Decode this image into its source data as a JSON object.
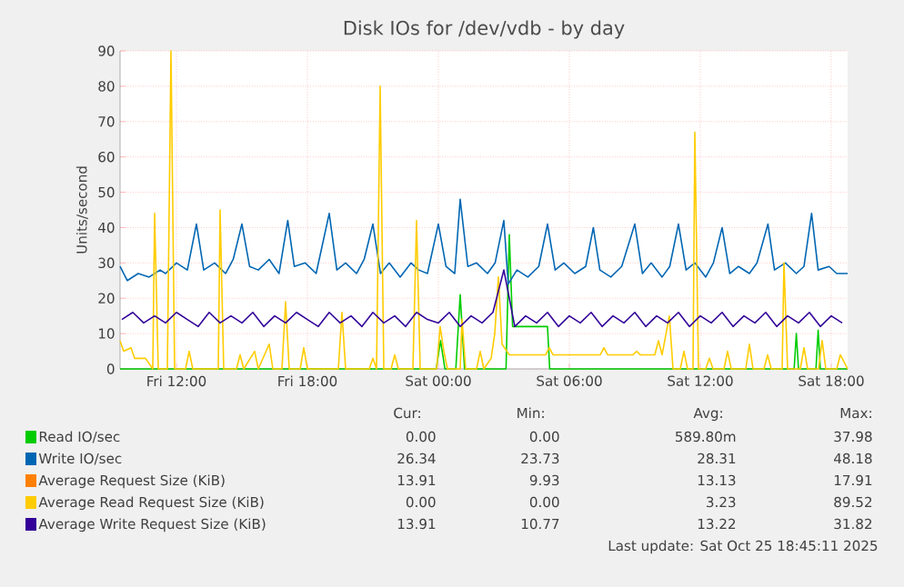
{
  "chart_data": {
    "type": "line",
    "title": "Disk IOs for /dev/vdb - by day",
    "ylabel": "Units/second",
    "xlim": [
      "2025-10-24T09:25",
      "2025-10-25T18:45"
    ],
    "ylim": [
      0,
      90
    ],
    "xticks": [
      {
        "value": "2025-10-24T12:00",
        "label": "Fri 12:00"
      },
      {
        "value": "2025-10-24T18:00",
        "label": "Fri 18:00"
      },
      {
        "value": "2025-10-25T00:00",
        "label": "Sat 00:00"
      },
      {
        "value": "2025-10-25T06:00",
        "label": "Sat 06:00"
      },
      {
        "value": "2025-10-25T12:00",
        "label": "Sat 12:00"
      },
      {
        "value": "2025-10-25T18:00",
        "label": "Sat 18:00"
      }
    ],
    "yticks": [
      0,
      10,
      20,
      30,
      40,
      50,
      60,
      70,
      80,
      90
    ],
    "grid": true,
    "legend": "bottom",
    "marker": "none",
    "line_style": "solid",
    "series": [
      {
        "name": "Read IO/sec",
        "color": "#00cc00",
        "x": [
          "2025-10-24T09:25",
          "2025-10-24T23:54",
          "2025-10-25T00:06",
          "2025-10-25T00:18",
          "2025-10-25T00:48",
          "2025-10-25T01:00",
          "2025-10-25T01:12",
          "2025-10-25T03:06",
          "2025-10-25T03:15",
          "2025-10-25T03:24",
          "2025-10-25T05:00",
          "2025-10-25T05:06",
          "2025-10-25T16:18",
          "2025-10-25T16:24",
          "2025-10-25T16:30",
          "2025-10-25T17:18",
          "2025-10-25T17:24",
          "2025-10-25T17:30",
          "2025-10-25T18:45"
        ],
        "values": [
          0,
          0,
          8,
          0,
          0,
          21,
          0,
          0,
          38,
          12,
          12,
          0,
          0,
          10,
          0,
          0,
          11,
          0,
          0
        ]
      },
      {
        "name": "Write IO/sec",
        "color": "#0066b3",
        "x": [
          "2025-10-24T09:25",
          "2025-10-24T09:45",
          "2025-10-24T10:15",
          "2025-10-24T10:45",
          "2025-10-24T11:15",
          "2025-10-24T11:30",
          "2025-10-24T12:00",
          "2025-10-24T12:30",
          "2025-10-24T12:55",
          "2025-10-24T13:15",
          "2025-10-24T13:45",
          "2025-10-24T14:15",
          "2025-10-24T14:36",
          "2025-10-24T15:00",
          "2025-10-24T15:21",
          "2025-10-24T15:45",
          "2025-10-24T16:15",
          "2025-10-24T16:42",
          "2025-10-24T17:06",
          "2025-10-24T17:24",
          "2025-10-24T17:54",
          "2025-10-24T18:24",
          "2025-10-24T19:00",
          "2025-10-24T19:21",
          "2025-10-24T19:45",
          "2025-10-24T20:15",
          "2025-10-24T20:36",
          "2025-10-24T21:00",
          "2025-10-24T21:21",
          "2025-10-24T21:45",
          "2025-10-24T22:15",
          "2025-10-24T22:45",
          "2025-10-24T23:06",
          "2025-10-24T23:30",
          "2025-10-25T00:00",
          "2025-10-25T00:21",
          "2025-10-25T00:45",
          "2025-10-25T01:00",
          "2025-10-25T01:21",
          "2025-10-25T01:45",
          "2025-10-25T02:15",
          "2025-10-25T02:36",
          "2025-10-25T03:00",
          "2025-10-25T03:12",
          "2025-10-25T03:36",
          "2025-10-25T04:06",
          "2025-10-25T04:36",
          "2025-10-25T05:00",
          "2025-10-25T05:21",
          "2025-10-25T05:45",
          "2025-10-25T06:15",
          "2025-10-25T06:45",
          "2025-10-25T07:06",
          "2025-10-25T07:24",
          "2025-10-25T07:54",
          "2025-10-25T08:24",
          "2025-10-25T09:00",
          "2025-10-25T09:21",
          "2025-10-25T09:45",
          "2025-10-25T10:15",
          "2025-10-25T10:36",
          "2025-10-25T11:00",
          "2025-10-25T11:21",
          "2025-10-25T11:45",
          "2025-10-25T12:15",
          "2025-10-25T12:36",
          "2025-10-25T13:00",
          "2025-10-25T13:21",
          "2025-10-25T13:45",
          "2025-10-25T14:15",
          "2025-10-25T14:36",
          "2025-10-25T15:06",
          "2025-10-25T15:24",
          "2025-10-25T15:54",
          "2025-10-25T16:24",
          "2025-10-25T16:45",
          "2025-10-25T17:06",
          "2025-10-25T17:24",
          "2025-10-25T17:54",
          "2025-10-25T18:15",
          "2025-10-25T18:45"
        ],
        "values": [
          29,
          25,
          27,
          26,
          28,
          27,
          30,
          28,
          41,
          28,
          30,
          27,
          31,
          41,
          29,
          28,
          31,
          27,
          42,
          29,
          30,
          27,
          44,
          28,
          30,
          27,
          31,
          41,
          27,
          30,
          26,
          30,
          28,
          27,
          41,
          29,
          27,
          48,
          29,
          30,
          27,
          30,
          42,
          24,
          28,
          26,
          29,
          41,
          28,
          30,
          27,
          29,
          40,
          28,
          26,
          29,
          41,
          27,
          30,
          26,
          29,
          41,
          28,
          30,
          26,
          30,
          40,
          27,
          29,
          27,
          30,
          41,
          28,
          30,
          27,
          29,
          44,
          28,
          29,
          27,
          27
        ]
      },
      {
        "name": "Average Request Size (KiB)",
        "color": "#ff8000"
      },
      {
        "name": "Average Read Request Size (KiB)",
        "color": "#ffcc00",
        "x": [
          "2025-10-24T09:25",
          "2025-10-24T09:35",
          "2025-10-24T09:55",
          "2025-10-24T10:05",
          "2025-10-24T10:35",
          "2025-10-24T10:55",
          "2025-10-24T11:00",
          "2025-10-24T11:10",
          "2025-10-24T11:35",
          "2025-10-24T11:45",
          "2025-10-24T11:55",
          "2025-10-24T12:25",
          "2025-10-24T12:35",
          "2025-10-24T12:45",
          "2025-10-24T13:55",
          "2025-10-24T14:00",
          "2025-10-24T14:10",
          "2025-10-24T14:45",
          "2025-10-24T14:55",
          "2025-10-24T15:05",
          "2025-10-24T15:35",
          "2025-10-24T15:45",
          "2025-10-24T16:15",
          "2025-10-24T16:25",
          "2025-10-24T16:50",
          "2025-10-24T17:00",
          "2025-10-24T17:10",
          "2025-10-24T17:40",
          "2025-10-24T17:50",
          "2025-10-24T18:00",
          "2025-10-24T19:25",
          "2025-10-24T19:35",
          "2025-10-24T19:45",
          "2025-10-24T20:50",
          "2025-10-24T21:00",
          "2025-10-24T21:10",
          "2025-10-24T21:20",
          "2025-10-24T21:30",
          "2025-10-24T21:50",
          "2025-10-24T22:00",
          "2025-10-24T22:10",
          "2025-10-24T22:50",
          "2025-10-24T23:00",
          "2025-10-24T23:10",
          "2025-10-24T23:55",
          "2025-10-25T00:05",
          "2025-10-25T00:15",
          "2025-10-25T00:25",
          "2025-10-25T01:00",
          "2025-10-25T01:05",
          "2025-10-25T01:15",
          "2025-10-25T01:45",
          "2025-10-25T01:55",
          "2025-10-25T02:05",
          "2025-10-25T02:25",
          "2025-10-25T02:35",
          "2025-10-25T02:45",
          "2025-10-25T02:55",
          "2025-10-25T03:15",
          "2025-10-25T04:55",
          "2025-10-25T05:05",
          "2025-10-25T05:15",
          "2025-10-25T07:25",
          "2025-10-25T07:35",
          "2025-10-25T07:45",
          "2025-10-25T08:55",
          "2025-10-25T09:05",
          "2025-10-25T09:15",
          "2025-10-25T09:55",
          "2025-10-25T10:05",
          "2025-10-25T10:15",
          "2025-10-25T10:35",
          "2025-10-25T10:45",
          "2025-10-25T11:05",
          "2025-10-25T11:15",
          "2025-10-25T11:25",
          "2025-10-25T11:40",
          "2025-10-25T11:45",
          "2025-10-25T11:55",
          "2025-10-25T12:15",
          "2025-10-25T12:25",
          "2025-10-25T12:35",
          "2025-10-25T13:05",
          "2025-10-25T13:15",
          "2025-10-25T13:25",
          "2025-10-25T14:05",
          "2025-10-25T14:15",
          "2025-10-25T14:25",
          "2025-10-25T14:55",
          "2025-10-25T15:05",
          "2025-10-25T15:15",
          "2025-10-25T15:45",
          "2025-10-25T15:50",
          "2025-10-25T16:00",
          "2025-10-25T16:35",
          "2025-10-25T16:45",
          "2025-10-25T16:55",
          "2025-10-25T17:25",
          "2025-10-25T17:35",
          "2025-10-25T17:45",
          "2025-10-25T18:15",
          "2025-10-25T18:25",
          "2025-10-25T18:45"
        ],
        "values": [
          8,
          5,
          6,
          3,
          3,
          0,
          44,
          0,
          0,
          90,
          0,
          0,
          5,
          0,
          0,
          45,
          0,
          0,
          4,
          0,
          5,
          0,
          7,
          0,
          0,
          19,
          0,
          0,
          6,
          0,
          0,
          16,
          0,
          0,
          3,
          0,
          80,
          0,
          0,
          4,
          0,
          0,
          42,
          0,
          0,
          12,
          5,
          0,
          0,
          14,
          0,
          0,
          5,
          0,
          3,
          10,
          26,
          7,
          4,
          4,
          6,
          4,
          4,
          6,
          4,
          4,
          5,
          4,
          4,
          8,
          4,
          15,
          0,
          0,
          5,
          0,
          0,
          67,
          0,
          0,
          3,
          0,
          0,
          5,
          0,
          0,
          7,
          0,
          0,
          4,
          0,
          0,
          30,
          0,
          0,
          6,
          0,
          0,
          8,
          0,
          0,
          4,
          0
        ]
      },
      {
        "name": "Average Write Request Size (KiB)",
        "color": "#330099",
        "x": [
          "2025-10-24T09:30",
          "2025-10-24T10:00",
          "2025-10-24T10:30",
          "2025-10-24T11:00",
          "2025-10-24T11:30",
          "2025-10-24T12:00",
          "2025-10-24T12:30",
          "2025-10-24T13:00",
          "2025-10-24T13:30",
          "2025-10-24T14:00",
          "2025-10-24T14:30",
          "2025-10-24T15:00",
          "2025-10-24T15:30",
          "2025-10-24T16:00",
          "2025-10-24T16:30",
          "2025-10-24T17:00",
          "2025-10-24T17:30",
          "2025-10-24T18:00",
          "2025-10-24T18:30",
          "2025-10-24T19:00",
          "2025-10-24T19:30",
          "2025-10-24T20:00",
          "2025-10-24T20:30",
          "2025-10-24T21:00",
          "2025-10-24T21:30",
          "2025-10-24T22:00",
          "2025-10-24T22:30",
          "2025-10-24T23:00",
          "2025-10-24T23:30",
          "2025-10-25T00:00",
          "2025-10-25T00:30",
          "2025-10-25T01:00",
          "2025-10-25T01:30",
          "2025-10-25T02:00",
          "2025-10-25T02:30",
          "2025-10-25T03:00",
          "2025-10-25T03:30",
          "2025-10-25T04:00",
          "2025-10-25T04:30",
          "2025-10-25T05:00",
          "2025-10-25T05:30",
          "2025-10-25T06:00",
          "2025-10-25T06:30",
          "2025-10-25T07:00",
          "2025-10-25T07:30",
          "2025-10-25T08:00",
          "2025-10-25T08:30",
          "2025-10-25T09:00",
          "2025-10-25T09:30",
          "2025-10-25T10:00",
          "2025-10-25T10:30",
          "2025-10-25T11:00",
          "2025-10-25T11:30",
          "2025-10-25T12:00",
          "2025-10-25T12:30",
          "2025-10-25T13:00",
          "2025-10-25T13:30",
          "2025-10-25T14:00",
          "2025-10-25T14:30",
          "2025-10-25T15:00",
          "2025-10-25T15:30",
          "2025-10-25T16:00",
          "2025-10-25T16:30",
          "2025-10-25T17:00",
          "2025-10-25T17:30",
          "2025-10-25T18:00",
          "2025-10-25T18:30"
        ],
        "values": [
          14,
          16,
          13,
          15,
          13,
          16,
          14,
          12,
          16,
          13,
          15,
          13,
          16,
          12,
          15,
          13,
          16,
          14,
          12,
          16,
          13,
          15,
          12,
          16,
          13,
          15,
          12,
          16,
          14,
          13,
          16,
          12,
          15,
          13,
          16,
          28,
          12,
          15,
          13,
          16,
          12,
          15,
          13,
          16,
          12,
          15,
          13,
          16,
          12,
          15,
          13,
          16,
          12,
          15,
          13,
          16,
          12,
          15,
          13,
          16,
          12,
          15,
          13,
          16,
          12,
          15,
          13
        ]
      }
    ],
    "annotations": [
      "Cur:",
      "Min:",
      "Avg:",
      "Max:",
      "0.00",
      "0.00",
      "589.80m",
      "37.98",
      "26.34",
      "23.73",
      "28.31",
      "48.18",
      "13.91",
      "9.93",
      "13.13",
      "17.91",
      "0.00",
      "0.00",
      "3.23",
      "89.52",
      "13.91",
      "10.77",
      "13.22",
      "31.82",
      "Last update: Sat Oct 25 18:45:11 2025"
    ]
  }
}
